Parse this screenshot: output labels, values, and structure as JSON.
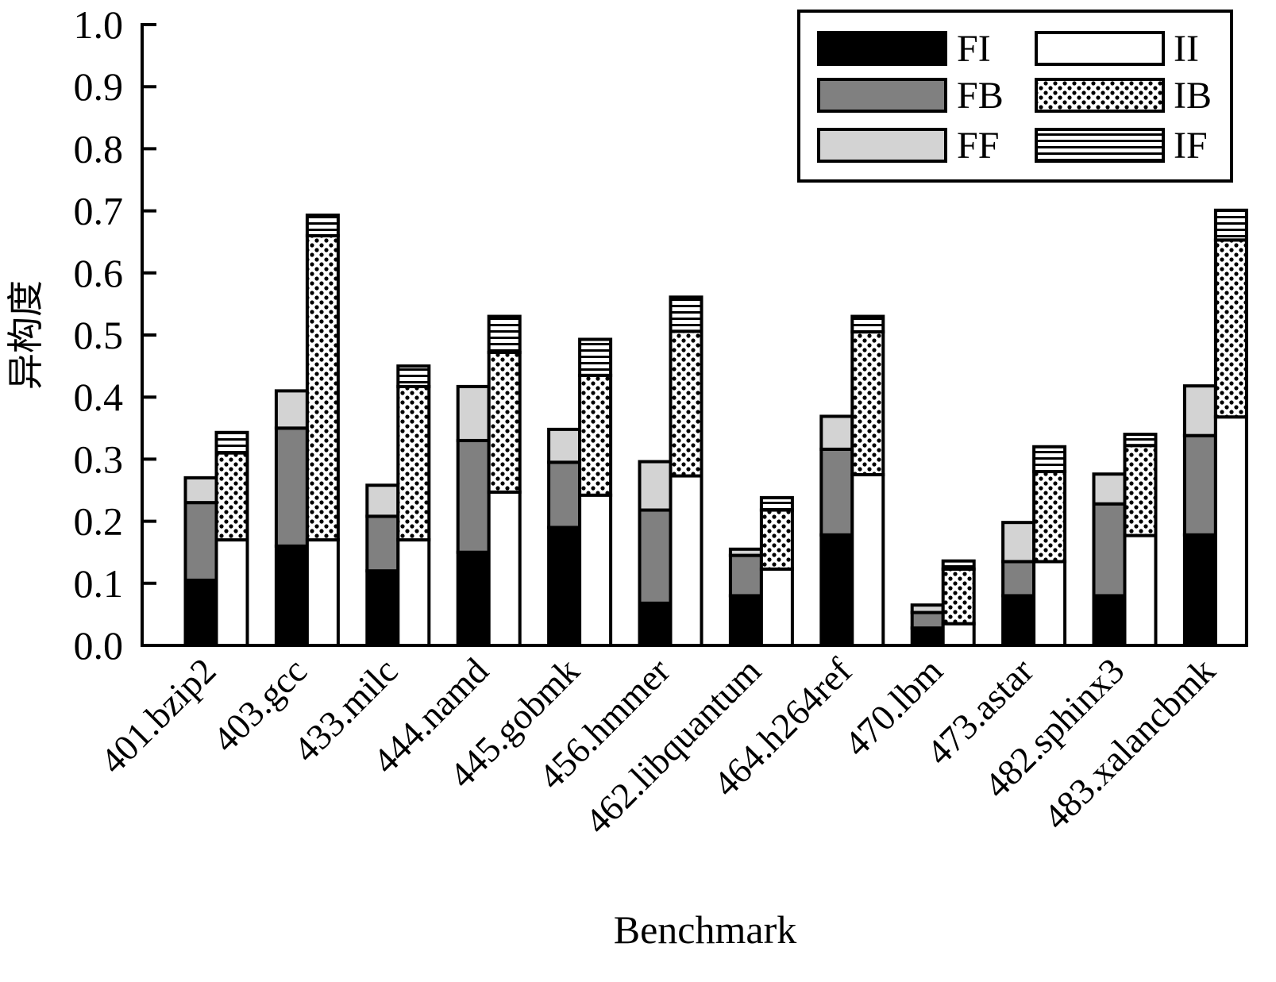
{
  "chart_data": {
    "type": "bar",
    "stacked": true,
    "xlabel": "Benchmark",
    "ylabel": "异构度",
    "ylim": [
      0,
      1.0
    ],
    "yticks": [
      "0.0",
      "0.1",
      "0.2",
      "0.3",
      "0.4",
      "0.5",
      "0.6",
      "0.7",
      "0.8",
      "0.9",
      "1.0"
    ],
    "categories": [
      "401.bzip2",
      "403.gcc",
      "433.milc",
      "444.namd",
      "445.gobmk",
      "456.hmmer",
      "462.libquantum",
      "464.h264ref",
      "470.lbm",
      "473.astar",
      "482.sphinx3",
      "483.xalancbmk"
    ],
    "groups": [
      {
        "bar": "left",
        "series": [
          {
            "name": "FI",
            "values": [
              0.105,
              0.16,
              0.12,
              0.15,
              0.19,
              0.068,
              0.08,
              0.178,
              0.028,
              0.08,
              0.08,
              0.178
            ]
          },
          {
            "name": "FB",
            "values": [
              0.125,
              0.19,
              0.088,
              0.18,
              0.105,
              0.15,
              0.065,
              0.138,
              0.025,
              0.055,
              0.148,
              0.16
            ]
          },
          {
            "name": "FF",
            "values": [
              0.04,
              0.06,
              0.05,
              0.087,
              0.053,
              0.078,
              0.01,
              0.053,
              0.012,
              0.063,
              0.048,
              0.08
            ]
          }
        ]
      },
      {
        "bar": "right",
        "series": [
          {
            "name": "II",
            "values": [
              0.17,
              0.17,
              0.17,
              0.247,
              0.242,
              0.273,
              0.123,
              0.275,
              0.035,
              0.135,
              0.177,
              0.368
            ]
          },
          {
            "name": "IB",
            "values": [
              0.14,
              0.49,
              0.247,
              0.225,
              0.193,
              0.233,
              0.095,
              0.23,
              0.088,
              0.145,
              0.145,
              0.285
            ]
          },
          {
            "name": "IF",
            "values": [
              0.033,
              0.033,
              0.033,
              0.058,
              0.058,
              0.055,
              0.02,
              0.025,
              0.013,
              0.04,
              0.018,
              0.048
            ]
          }
        ]
      }
    ],
    "legend": {
      "position": "top-right",
      "items": [
        {
          "name": "FI",
          "pattern": "solid-black"
        },
        {
          "name": "II",
          "pattern": "white"
        },
        {
          "name": "FB",
          "pattern": "dark-gray"
        },
        {
          "name": "IB",
          "pattern": "dots"
        },
        {
          "name": "FF",
          "pattern": "light-gray"
        },
        {
          "name": "IF",
          "pattern": "horizontal-lines"
        }
      ]
    },
    "colors": {
      "FI": "#000000",
      "FB": "#808080",
      "FF": "#d3d3d3",
      "II": "#ffffff"
    }
  }
}
